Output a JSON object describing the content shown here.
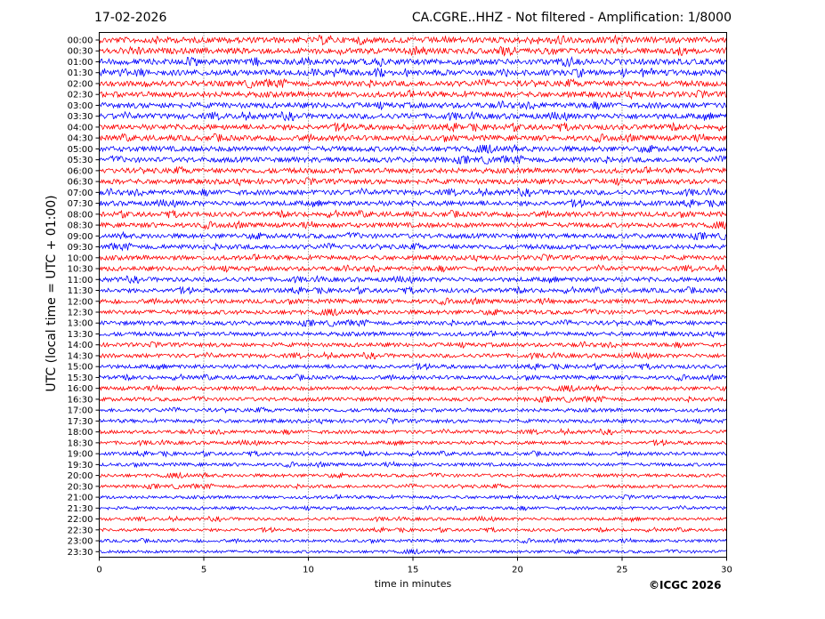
{
  "header": {
    "date": "17-02-2026",
    "title": "CA.CGRE..HHZ - Not filtered - Amplification: 1/8000"
  },
  "footer": {
    "credit": "©ICGC 2026"
  },
  "colors": {
    "trace_a": "#ff0000",
    "trace_b": "#0000ff",
    "axis": "#000000",
    "grid": "#000000"
  },
  "chart_data": {
    "type": "line",
    "title": "CA.CGRE..HHZ - Not filtered - Amplification: 1/8000",
    "xlabel": "time in minutes",
    "ylabel": "UTC (local time = UTC + 01:00)",
    "xlim": [
      0,
      30
    ],
    "x_ticks": [
      0,
      5,
      10,
      15,
      20,
      25,
      30
    ],
    "grid": "vertical dotted",
    "rows": [
      "00:00",
      "00:30",
      "01:00",
      "01:30",
      "02:00",
      "02:30",
      "03:00",
      "03:30",
      "04:00",
      "04:30",
      "05:00",
      "05:30",
      "06:00",
      "06:30",
      "07:00",
      "07:30",
      "08:00",
      "08:30",
      "09:00",
      "09:30",
      "10:00",
      "10:30",
      "11:00",
      "11:30",
      "12:00",
      "12:30",
      "13:00",
      "13:30",
      "14:00",
      "14:30",
      "15:00",
      "15:30",
      "16:00",
      "16:30",
      "17:00",
      "17:30",
      "18:00",
      "18:30",
      "19:00",
      "19:30",
      "20:00",
      "20:30",
      "21:00",
      "21:30",
      "22:00",
      "22:30",
      "23:00",
      "23:30"
    ],
    "row_colors": "alternating pairs red/blue"
  }
}
